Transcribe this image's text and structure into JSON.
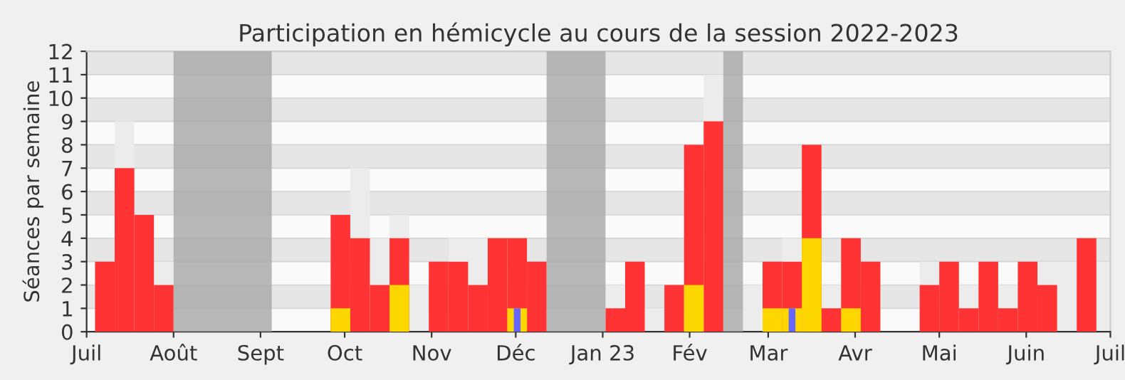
{
  "chart_data": {
    "type": "bar",
    "title": "Participation en hémicycle au cours de la session 2022-2023",
    "ylabel": "Séances par semaine",
    "x": [
      "2022-07-04",
      "2022-07-11",
      "2022-07-18",
      "2022-07-25",
      "2022-08-01",
      "2022-08-08",
      "2022-08-15",
      "2022-08-22",
      "2022-08-29",
      "2022-09-05",
      "2022-09-12",
      "2022-09-19",
      "2022-09-26",
      "2022-10-03",
      "2022-10-10",
      "2022-10-17",
      "2022-10-24",
      "2022-10-31",
      "2022-11-07",
      "2022-11-14",
      "2022-11-21",
      "2022-11-28",
      "2022-12-05",
      "2022-12-12",
      "2022-12-19",
      "2022-12-26",
      "2023-01-02",
      "2023-01-09",
      "2023-01-16",
      "2023-01-23",
      "2023-01-30",
      "2023-02-06",
      "2023-02-13",
      "2023-02-20",
      "2023-02-27",
      "2023-03-06",
      "2023-03-13",
      "2023-03-20",
      "2023-03-27",
      "2023-04-03",
      "2023-04-10",
      "2023-04-17",
      "2023-04-24",
      "2023-05-01",
      "2023-05-08",
      "2023-05-15",
      "2023-05-22",
      "2023-05-29",
      "2023-06-05",
      "2023-06-12",
      "2023-06-19",
      "2023-06-26"
    ],
    "series": [
      {
        "color": "#ececec",
        "values": [
          null,
          9,
          null,
          3,
          null,
          null,
          null,
          null,
          null,
          null,
          null,
          null,
          null,
          7,
          4,
          5,
          2,
          null,
          4,
          4,
          null,
          null,
          null,
          null,
          null,
          null,
          2,
          null,
          1,
          null,
          null,
          11,
          null,
          2,
          null,
          4,
          null,
          2,
          null,
          null,
          null,
          null,
          3,
          null,
          2,
          null,
          2,
          null,
          3,
          3,
          null,
          3
        ]
      },
      {
        "color": "#ff3333",
        "values": [
          3,
          7,
          5,
          2,
          null,
          null,
          null,
          null,
          null,
          null,
          null,
          null,
          5,
          4,
          2,
          4,
          null,
          3,
          3,
          2,
          4,
          4,
          3,
          null,
          null,
          null,
          1,
          3,
          null,
          2,
          8,
          9,
          null,
          null,
          3,
          3,
          8,
          1,
          4,
          3,
          null,
          null,
          2,
          3,
          1,
          3,
          1,
          3,
          2,
          null,
          4,
          null
        ]
      },
      {
        "color": "#ffd700",
        "values": [
          null,
          null,
          null,
          null,
          null,
          null,
          null,
          null,
          null,
          null,
          null,
          null,
          1,
          null,
          null,
          2,
          null,
          null,
          null,
          null,
          null,
          1,
          null,
          null,
          null,
          null,
          null,
          null,
          null,
          null,
          2,
          null,
          null,
          null,
          1,
          1,
          4,
          null,
          1,
          null,
          null,
          null,
          null,
          null,
          null,
          null,
          null,
          null,
          null,
          null,
          null,
          null
        ]
      },
      {
        "color": "#6666ff",
        "values": [
          null,
          null,
          null,
          null,
          null,
          null,
          null,
          null,
          null,
          null,
          null,
          null,
          null,
          null,
          null,
          null,
          null,
          null,
          null,
          null,
          null,
          1,
          null,
          null,
          null,
          null,
          null,
          null,
          null,
          null,
          null,
          null,
          null,
          null,
          null,
          1,
          null,
          null,
          null,
          null,
          null,
          null,
          null,
          null,
          null,
          null,
          null,
          null,
          null,
          null,
          null,
          null
        ]
      }
    ],
    "bands": [
      {
        "axis": "x",
        "from": "2022-08-01",
        "to": "2022-09-05",
        "color": "#a8a8a8"
      },
      {
        "axis": "x",
        "from": "2022-12-12",
        "to": "2023-01-02",
        "color": "#a8a8a8"
      },
      {
        "axis": "x",
        "from": "2023-02-13",
        "to": "2023-02-20",
        "color": "#a8a8a8"
      }
    ],
    "xlim": [
      "2022-07-01",
      "2023-07-01"
    ],
    "xticks": [
      {
        "value": "2022-07-01",
        "label": "Juil"
      },
      {
        "value": "2022-08-01",
        "label": "Août"
      },
      {
        "value": "2022-09-01",
        "label": "Sept"
      },
      {
        "value": "2022-10-01",
        "label": "Oct"
      },
      {
        "value": "2022-11-01",
        "label": "Nov"
      },
      {
        "value": "2022-12-01",
        "label": "Déc"
      },
      {
        "value": "2023-01-01",
        "label": "Jan 23"
      },
      {
        "value": "2023-02-01",
        "label": "Fév"
      },
      {
        "value": "2023-03-01",
        "label": "Mar"
      },
      {
        "value": "2023-04-01",
        "label": "Avr"
      },
      {
        "value": "2023-05-01",
        "label": "Mai"
      },
      {
        "value": "2023-06-01",
        "label": "Juin"
      },
      {
        "value": "2023-07-01",
        "label": "Juil"
      }
    ],
    "ylim": [
      0,
      12
    ],
    "yticks": [
      0,
      1,
      2,
      3,
      4,
      5,
      6,
      7,
      8,
      9,
      10,
      11,
      12
    ],
    "grid": "y"
  }
}
